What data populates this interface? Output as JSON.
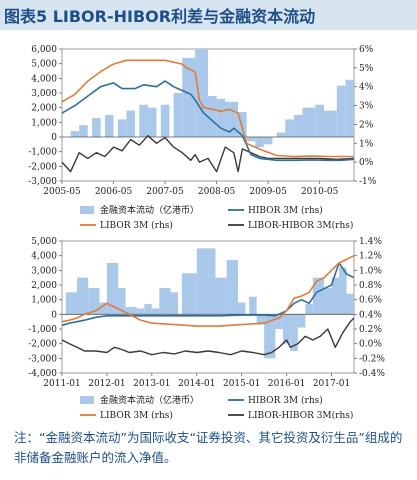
{
  "title": "图表5  LIBOR-HIBOR利差与金融资本流动",
  "footnote": "注：“金融资本流动”为国际收支“证券投资、其它投资及衍生品”组成的非储备金融账户的流入净值。",
  "colors": {
    "bar": "#a9c8ea",
    "hibor": "#2e6f9e",
    "libor": "#e07b39",
    "spread": "#3a3a3a",
    "title_band": "#d7e5f1",
    "title_text": "#1f4f8a"
  },
  "chart_data": [
    {
      "type": "bar",
      "y_left_ticks": [
        "6,000",
        "5,000",
        "4,000",
        "3,000",
        "2,000",
        "1,000",
        "0",
        "-1,000",
        "-2,000",
        "-3,000"
      ],
      "y_right_ticks": [
        "6%",
        "5%",
        "4%",
        "3%",
        "2%",
        "1%",
        "0%",
        "-1%"
      ],
      "x_ticks": [
        "2005-05",
        "2006-05",
        "2007-05",
        "2008-05",
        "2009-05",
        "2010-05"
      ],
      "ylim_left": [
        -3000,
        6000
      ],
      "ylim_right": [
        -1,
        6
      ],
      "x_range": [
        0,
        68
      ],
      "x_tick_positions": [
        0,
        12,
        24,
        36,
        48,
        60
      ],
      "legend": [
        {
          "label": "金融资本流动（亿港币）",
          "kind": "bar"
        },
        {
          "label": "HIBOR 3M (rhs)",
          "kind": "hibor"
        },
        {
          "label": "LIBOR 3M (rhs)",
          "kind": "libor"
        },
        {
          "label": "LIBOR-HIBOR 3M(rhs)",
          "kind": "spread"
        }
      ],
      "bars": [
        {
          "x": 2,
          "w": 2,
          "v": 400
        },
        {
          "x": 4,
          "w": 2,
          "v": 800
        },
        {
          "x": 7,
          "w": 2,
          "v": 1300
        },
        {
          "x": 10,
          "w": 2,
          "v": 1500
        },
        {
          "x": 13,
          "w": 2,
          "v": 1200
        },
        {
          "x": 15,
          "w": 2,
          "v": 1800
        },
        {
          "x": 18,
          "w": 2,
          "v": 2200
        },
        {
          "x": 20,
          "w": 2,
          "v": 2000
        },
        {
          "x": 23,
          "w": 2,
          "v": 2200
        },
        {
          "x": 26,
          "w": 2,
          "v": 3000
        },
        {
          "x": 28,
          "w": 3,
          "v": 5400
        },
        {
          "x": 31,
          "w": 3,
          "v": 6000
        },
        {
          "x": 34,
          "w": 2,
          "v": 2800
        },
        {
          "x": 36,
          "w": 2,
          "v": 2600
        },
        {
          "x": 38,
          "w": 3,
          "v": 2400
        },
        {
          "x": 41,
          "w": 2,
          "v": 1700
        },
        {
          "x": 43,
          "w": 2,
          "v": -300
        },
        {
          "x": 45,
          "w": 2,
          "v": -700
        },
        {
          "x": 47,
          "w": 2,
          "v": -500
        },
        {
          "x": 50,
          "w": 2,
          "v": 300
        },
        {
          "x": 52,
          "w": 2,
          "v": 1200
        },
        {
          "x": 54,
          "w": 2,
          "v": 1500
        },
        {
          "x": 56,
          "w": 3,
          "v": 2000
        },
        {
          "x": 59,
          "w": 2,
          "v": 2200
        },
        {
          "x": 61,
          "w": 3,
          "v": 1800
        },
        {
          "x": 64,
          "w": 2,
          "v": 3500
        },
        {
          "x": 66,
          "w": 2,
          "v": 3900
        }
      ],
      "hibor": [
        [
          0,
          2.6
        ],
        [
          3,
          3.0
        ],
        [
          6,
          3.5
        ],
        [
          9,
          4.0
        ],
        [
          12,
          4.2
        ],
        [
          14,
          3.9
        ],
        [
          17,
          3.9
        ],
        [
          19,
          4.1
        ],
        [
          22,
          4.0
        ],
        [
          24,
          4.3
        ],
        [
          26,
          4.0
        ],
        [
          28,
          3.8
        ],
        [
          30,
          3.6
        ],
        [
          31,
          3.3
        ],
        [
          33,
          2.6
        ],
        [
          35,
          2.2
        ],
        [
          37,
          1.8
        ],
        [
          39,
          1.6
        ],
        [
          40,
          1.8
        ],
        [
          42,
          1.4
        ],
        [
          44,
          0.4
        ],
        [
          46,
          0.2
        ],
        [
          48,
          0.15
        ],
        [
          50,
          0.1
        ],
        [
          54,
          0.1
        ],
        [
          58,
          0.12
        ],
        [
          62,
          0.1
        ],
        [
          65,
          0.1
        ],
        [
          68,
          0.15
        ]
      ],
      "libor": [
        [
          0,
          3.2
        ],
        [
          3,
          3.6
        ],
        [
          6,
          4.3
        ],
        [
          9,
          4.8
        ],
        [
          12,
          5.2
        ],
        [
          15,
          5.4
        ],
        [
          18,
          5.4
        ],
        [
          21,
          5.4
        ],
        [
          24,
          5.4
        ],
        [
          26,
          5.3
        ],
        [
          28,
          5.2
        ],
        [
          29,
          5.0
        ],
        [
          31,
          4.8
        ],
        [
          32,
          3.3
        ],
        [
          33,
          2.9
        ],
        [
          35,
          2.8
        ],
        [
          37,
          2.7
        ],
        [
          39,
          2.8
        ],
        [
          41,
          2.6
        ],
        [
          42,
          1.8
        ],
        [
          43,
          1.0
        ],
        [
          45,
          0.8
        ],
        [
          47,
          0.6
        ],
        [
          50,
          0.35
        ],
        [
          54,
          0.3
        ],
        [
          58,
          0.32
        ],
        [
          62,
          0.3
        ],
        [
          65,
          0.3
        ],
        [
          68,
          0.3
        ]
      ],
      "spread": [
        [
          0,
          0.0
        ],
        [
          2,
          -0.5
        ],
        [
          4,
          0.5
        ],
        [
          6,
          0.2
        ],
        [
          8,
          0.5
        ],
        [
          10,
          0.3
        ],
        [
          12,
          0.8
        ],
        [
          14,
          0.6
        ],
        [
          16,
          1.2
        ],
        [
          18,
          0.9
        ],
        [
          20,
          1.4
        ],
        [
          22,
          1.0
        ],
        [
          24,
          1.3
        ],
        [
          26,
          0.8
        ],
        [
          28,
          0.5
        ],
        [
          30,
          0.1
        ],
        [
          31,
          0.4
        ],
        [
          32,
          0.0
        ],
        [
          34,
          0.2
        ],
        [
          36,
          -0.5
        ],
        [
          38,
          0.8
        ],
        [
          40,
          0.5
        ],
        [
          41,
          -0.5
        ],
        [
          42,
          0.7
        ],
        [
          44,
          0.5
        ],
        [
          46,
          0.3
        ],
        [
          48,
          0.2
        ],
        [
          52,
          0.2
        ],
        [
          56,
          0.2
        ],
        [
          60,
          0.2
        ],
        [
          64,
          0.15
        ],
        [
          68,
          0.2
        ]
      ]
    },
    {
      "type": "bar",
      "y_left_ticks": [
        "5,000",
        "4,000",
        "3,000",
        "2,000",
        "1,000",
        "0",
        "-1,000",
        "-2,000",
        "-3,000",
        "-4,000"
      ],
      "y_right_ticks": [
        "1.4%",
        "1.2%",
        "1.0%",
        "0.8%",
        "0.6%",
        "0.4%",
        "0.2%",
        "0.0%",
        "-0.2%",
        "-0.4%"
      ],
      "x_ticks": [
        "2011-01",
        "2012-01",
        "2013-01",
        "2014-01",
        "2015-01",
        "2016-01",
        "2017-01"
      ],
      "ylim_left": [
        -4000,
        5000
      ],
      "ylim_right": [
        -0.4,
        1.4
      ],
      "x_range": [
        0,
        78
      ],
      "x_tick_positions": [
        0,
        12,
        24,
        36,
        48,
        60,
        72
      ],
      "legend": [
        {
          "label": "金融资本流动（亿港币）",
          "kind": "bar"
        },
        {
          "label": "HIBOR 3M (rhs)",
          "kind": "hibor"
        },
        {
          "label": "LIBOR 3M (rhs)",
          "kind": "libor"
        },
        {
          "label": "LIBOR-HIBOR 3M(rhs)",
          "kind": "spread"
        }
      ],
      "bars": [
        {
          "x": 1,
          "w": 3,
          "v": 1500
        },
        {
          "x": 4,
          "w": 3,
          "v": 2500
        },
        {
          "x": 7,
          "w": 3,
          "v": 1800
        },
        {
          "x": 10,
          "w": 2,
          "v": 800
        },
        {
          "x": 12,
          "w": 3,
          "v": 3500
        },
        {
          "x": 15,
          "w": 2,
          "v": 1800
        },
        {
          "x": 17,
          "w": 3,
          "v": 500
        },
        {
          "x": 20,
          "w": 2,
          "v": 400
        },
        {
          "x": 22,
          "w": 2,
          "v": 700
        },
        {
          "x": 24,
          "w": 2,
          "v": 400
        },
        {
          "x": 26,
          "w": 3,
          "v": 1800
        },
        {
          "x": 29,
          "w": 2,
          "v": 1500
        },
        {
          "x": 32,
          "w": 4,
          "v": 2800
        },
        {
          "x": 36,
          "w": 5,
          "v": 4500
        },
        {
          "x": 41,
          "w": 3,
          "v": 2500
        },
        {
          "x": 44,
          "w": 3,
          "v": 3700
        },
        {
          "x": 47,
          "w": 2,
          "v": 800
        },
        {
          "x": 50,
          "w": 2,
          "v": 1200
        },
        {
          "x": 52,
          "w": 2,
          "v": -700
        },
        {
          "x": 54,
          "w": 3,
          "v": -3000
        },
        {
          "x": 57,
          "w": 2,
          "v": -1000
        },
        {
          "x": 59,
          "w": 2,
          "v": -2000
        },
        {
          "x": 61,
          "w": 2,
          "v": -2500
        },
        {
          "x": 63,
          "w": 2,
          "v": -900
        },
        {
          "x": 65,
          "w": 2,
          "v": 700
        },
        {
          "x": 67,
          "w": 3,
          "v": 2500
        },
        {
          "x": 70,
          "w": 2,
          "v": 1800
        },
        {
          "x": 72,
          "w": 2,
          "v": 2500
        },
        {
          "x": 74,
          "w": 2,
          "v": 3200
        },
        {
          "x": 76,
          "w": 2,
          "v": 1400
        }
      ],
      "hibor": [
        [
          0,
          0.25
        ],
        [
          2,
          0.28
        ],
        [
          4,
          0.3
        ],
        [
          6,
          0.32
        ],
        [
          9,
          0.36
        ],
        [
          12,
          0.38
        ],
        [
          15,
          0.38
        ],
        [
          18,
          0.38
        ],
        [
          21,
          0.38
        ],
        [
          24,
          0.38
        ],
        [
          30,
          0.38
        ],
        [
          36,
          0.38
        ],
        [
          42,
          0.38
        ],
        [
          48,
          0.39
        ],
        [
          54,
          0.39
        ],
        [
          57,
          0.38
        ],
        [
          60,
          0.45
        ],
        [
          62,
          0.55
        ],
        [
          64,
          0.6
        ],
        [
          66,
          0.55
        ],
        [
          68,
          0.7
        ],
        [
          70,
          0.75
        ],
        [
          72,
          0.8
        ],
        [
          74,
          1.1
        ],
        [
          76,
          0.95
        ],
        [
          78,
          0.9
        ]
      ],
      "libor": [
        [
          0,
          0.3
        ],
        [
          2,
          0.32
        ],
        [
          4,
          0.35
        ],
        [
          6,
          0.4
        ],
        [
          9,
          0.45
        ],
        [
          12,
          0.55
        ],
        [
          14,
          0.5
        ],
        [
          16,
          0.45
        ],
        [
          18,
          0.4
        ],
        [
          21,
          0.32
        ],
        [
          24,
          0.28
        ],
        [
          30,
          0.26
        ],
        [
          36,
          0.24
        ],
        [
          42,
          0.24
        ],
        [
          48,
          0.26
        ],
        [
          54,
          0.28
        ],
        [
          58,
          0.35
        ],
        [
          60,
          0.45
        ],
        [
          62,
          0.62
        ],
        [
          64,
          0.65
        ],
        [
          66,
          0.7
        ],
        [
          68,
          0.85
        ],
        [
          70,
          0.9
        ],
        [
          72,
          1.0
        ],
        [
          74,
          1.1
        ],
        [
          76,
          1.15
        ],
        [
          78,
          1.2
        ]
      ],
      "spread": [
        [
          0,
          0.05
        ],
        [
          2,
          0.0
        ],
        [
          4,
          -0.05
        ],
        [
          6,
          -0.1
        ],
        [
          9,
          -0.1
        ],
        [
          12,
          -0.12
        ],
        [
          14,
          -0.05
        ],
        [
          16,
          -0.08
        ],
        [
          18,
          -0.12
        ],
        [
          21,
          -0.1
        ],
        [
          24,
          -0.15
        ],
        [
          27,
          -0.12
        ],
        [
          30,
          -0.14
        ],
        [
          33,
          -0.1
        ],
        [
          36,
          -0.12
        ],
        [
          39,
          -0.1
        ],
        [
          42,
          -0.12
        ],
        [
          45,
          -0.15
        ],
        [
          48,
          -0.1
        ],
        [
          51,
          -0.12
        ],
        [
          54,
          -0.15
        ],
        [
          56,
          -0.12
        ],
        [
          58,
          -0.05
        ],
        [
          60,
          0.05
        ],
        [
          61,
          -0.05
        ],
        [
          63,
          0.0
        ],
        [
          65,
          0.1
        ],
        [
          67,
          0.05
        ],
        [
          69,
          0.1
        ],
        [
          71,
          0.2
        ],
        [
          73,
          -0.05
        ],
        [
          75,
          0.15
        ],
        [
          77,
          0.3
        ],
        [
          78,
          0.35
        ]
      ]
    }
  ]
}
